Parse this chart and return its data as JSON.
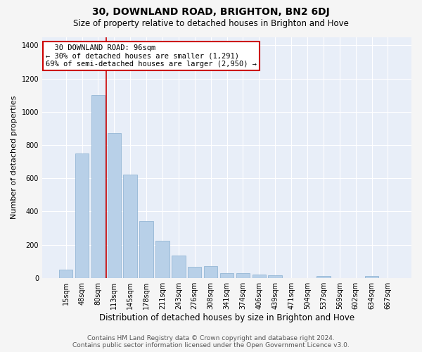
{
  "title": "30, DOWNLAND ROAD, BRIGHTON, BN2 6DJ",
  "subtitle": "Size of property relative to detached houses in Brighton and Hove",
  "xlabel": "Distribution of detached houses by size in Brighton and Hove",
  "ylabel": "Number of detached properties",
  "footer_line1": "Contains HM Land Registry data © Crown copyright and database right 2024.",
  "footer_line2": "Contains public sector information licensed under the Open Government Licence v3.0.",
  "categories": [
    "15sqm",
    "48sqm",
    "80sqm",
    "113sqm",
    "145sqm",
    "178sqm",
    "211sqm",
    "243sqm",
    "276sqm",
    "308sqm",
    "341sqm",
    "374sqm",
    "406sqm",
    "439sqm",
    "471sqm",
    "504sqm",
    "537sqm",
    "569sqm",
    "602sqm",
    "634sqm",
    "667sqm"
  ],
  "values": [
    50,
    750,
    1100,
    870,
    620,
    340,
    225,
    135,
    65,
    70,
    30,
    30,
    20,
    15,
    0,
    0,
    10,
    0,
    0,
    10,
    0
  ],
  "bar_color": "#b8d0e8",
  "bar_edge_color": "#8ab0d0",
  "property_size_label": "30 DOWNLAND ROAD: 96sqm",
  "pct_smaller": "30% of detached houses are smaller (1,291)",
  "pct_larger": "69% of semi-detached houses are larger (2,950)",
  "vline_x": 2.5,
  "annotation_box_edgecolor": "#cc0000",
  "ylim": [
    0,
    1450
  ],
  "yticks": [
    0,
    200,
    400,
    600,
    800,
    1000,
    1200,
    1400
  ],
  "bg_color": "#e8eef8",
  "grid_color": "#ffffff",
  "fig_bg_color": "#f5f5f5",
  "title_fontsize": 10,
  "subtitle_fontsize": 8.5,
  "xlabel_fontsize": 8.5,
  "ylabel_fontsize": 8,
  "tick_fontsize": 7,
  "footer_fontsize": 6.5,
  "annot_fontsize": 7.5
}
